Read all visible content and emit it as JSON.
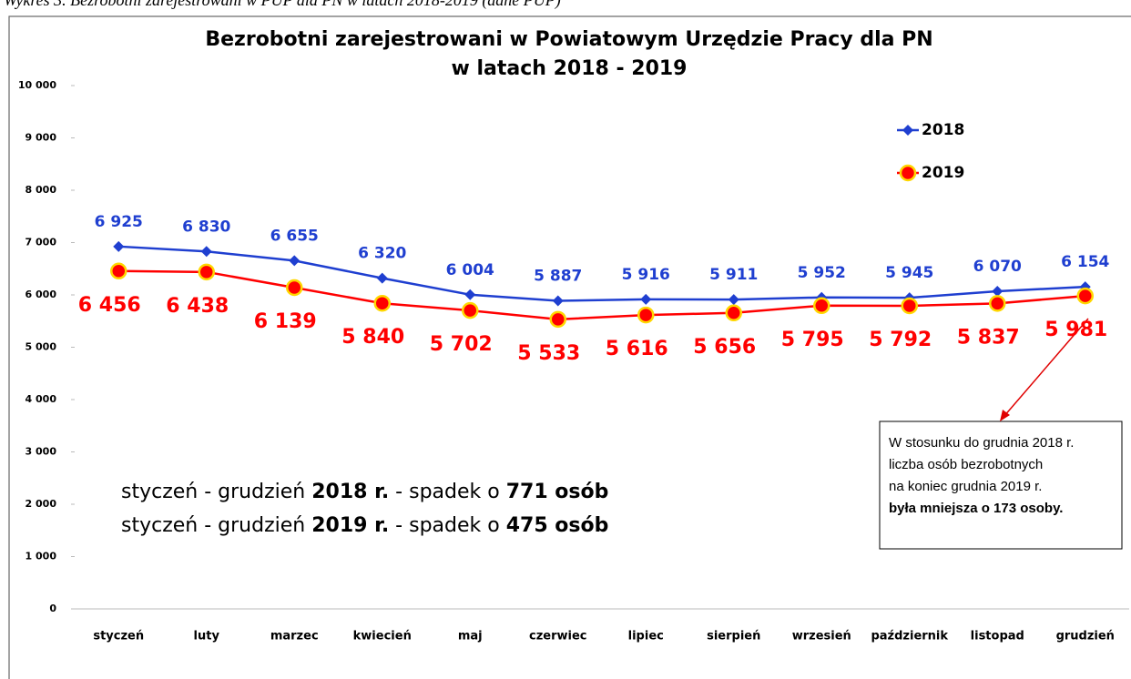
{
  "caption": "Wykres 3. Bezrobotni zarejestrowani w PUP dla PN w latach 2018-2019  (dane PUP)",
  "chart_data": {
    "type": "line",
    "title": [
      "Bezrobotni zarejestrowani w Powiatowym Urzędzie Pracy dla PN",
      "w latach 2018 - 2019"
    ],
    "categories": [
      "styczeń",
      "luty",
      "marzec",
      "kwiecień",
      "maj",
      "czerwiec",
      "lipiec",
      "sierpień",
      "wrzesień",
      "październik",
      "listopad",
      "grudzień"
    ],
    "series": [
      {
        "name": "2018",
        "color": "#1f3fd0",
        "marker": "diamond",
        "values": [
          6925,
          6830,
          6655,
          6320,
          6004,
          5887,
          5916,
          5911,
          5952,
          5945,
          6070,
          6154
        ],
        "value_labels": [
          "6 925",
          "6 830",
          "6 655",
          "6 320",
          "6 004",
          "5 887",
          "5 916",
          "5 911",
          "5 952",
          "5 945",
          "6 070",
          "6 154"
        ]
      },
      {
        "name": "2019",
        "color": "#ff0000",
        "marker": "circle",
        "marker_edge": "#ffd700",
        "values": [
          6456,
          6438,
          6139,
          5840,
          5702,
          5533,
          5616,
          5656,
          5795,
          5792,
          5837,
          5981
        ],
        "value_labels": [
          "6 456",
          "6 438",
          "6 139",
          "5 840",
          "5 702",
          "5 533",
          "5 616",
          "5 656",
          "5 795",
          "5 792",
          "5 837",
          "5 981"
        ]
      }
    ],
    "ylim": [
      0,
      10000
    ],
    "yticks": [
      0,
      {
        "value": 1000,
        "label": "1 000"
      },
      {
        "value": 2000,
        "label": "2 000"
      },
      {
        "value": 3000,
        "label": "3 000"
      },
      {
        "value": 4000,
        "label": "4 000"
      },
      {
        "value": 5000,
        "label": "5 000"
      },
      {
        "value": 6000,
        "label": "6 000"
      },
      {
        "value": 7000,
        "label": "7 000"
      },
      {
        "value": 8000,
        "label": "8 000"
      },
      {
        "value": 9000,
        "label": "9 000"
      },
      {
        "value": 10000,
        "label": "10 000"
      }
    ],
    "grid": false,
    "legend": "upper right",
    "annotations": [
      [
        {
          "text": "styczeń - grudzień ",
          "bold": false
        },
        {
          "text": "2018 r.",
          "bold": true
        },
        {
          "text": " - spadek o ",
          "bold": false
        },
        {
          "text": "771 osób",
          "bold": true
        }
      ],
      [
        {
          "text": "styczeń - grudzień ",
          "bold": false
        },
        {
          "text": "2019 r.",
          "bold": true
        },
        {
          "text": " - spadek o ",
          "bold": false
        },
        {
          "text": "475 osób",
          "bold": true
        }
      ]
    ],
    "note_box": [
      {
        "text": "W stosunku do grudnia 2018 r.",
        "bold": false
      },
      {
        "text": "liczba osób bezrobotnych",
        "bold": false
      },
      {
        "text": "na koniec grudnia 2019 r.",
        "bold": false
      },
      {
        "text": "była mniejsza o 173 osoby.",
        "bold": true
      }
    ]
  }
}
